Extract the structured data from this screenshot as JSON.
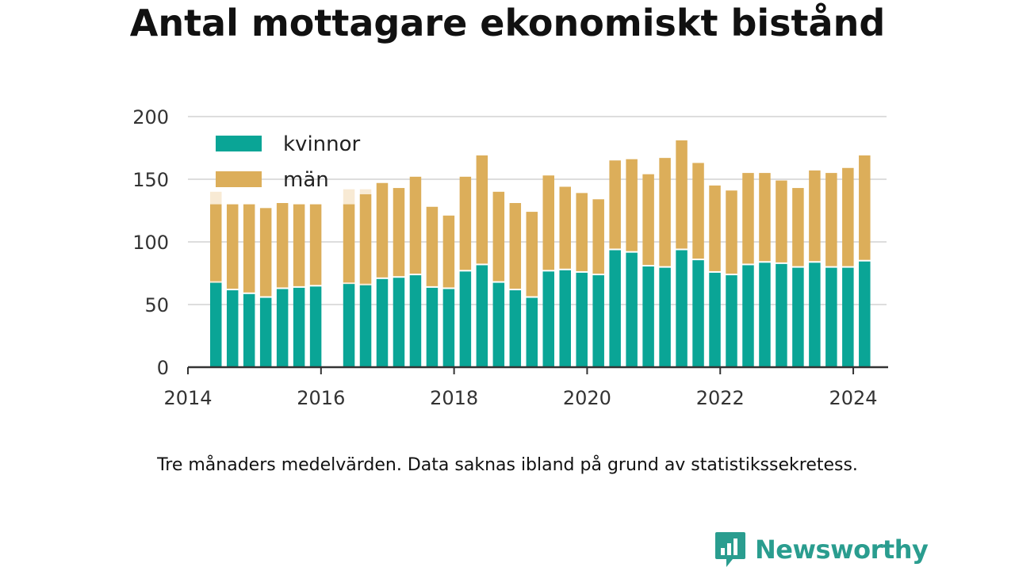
{
  "chart_data": {
    "type": "bar",
    "stacked": true,
    "title": "Antal mottagare ekonomiskt bistånd",
    "caption": "Tre månaders medelvärden. Data saknas ibland på grund av statistikssekretess.",
    "ylim": [
      0,
      200
    ],
    "y_ticks": [
      0,
      50,
      100,
      150,
      200
    ],
    "x_ticks": [
      2014,
      2016,
      2018,
      2020,
      2022,
      2024
    ],
    "xlim": [
      2014,
      2024.5
    ],
    "grid": true,
    "legend_position": "top-left",
    "colors": {
      "kvinnor": "#0aa596",
      "män": "#dcae5a",
      "suppressed": "#f8ead4"
    },
    "x": [
      2014.42,
      2014.67,
      2014.92,
      2015.17,
      2015.42,
      2015.67,
      2015.92,
      2016.42,
      2016.67,
      2016.92,
      2017.17,
      2017.42,
      2017.67,
      2017.92,
      2018.17,
      2018.42,
      2018.67,
      2018.92,
      2019.17,
      2019.42,
      2019.67,
      2019.92,
      2020.17,
      2020.42,
      2020.67,
      2020.92,
      2021.17,
      2021.42,
      2021.67,
      2021.92,
      2022.17,
      2022.42,
      2022.67,
      2022.92,
      2023.17,
      2023.42,
      2023.67,
      2023.92,
      2024.17
    ],
    "series": [
      {
        "name": "kvinnor",
        "values": [
          68,
          62,
          59,
          56,
          63,
          64,
          65,
          67,
          66,
          71,
          72,
          74,
          64,
          63,
          77,
          82,
          68,
          62,
          56,
          77,
          78,
          76,
          74,
          94,
          92,
          81,
          80,
          94,
          86,
          76,
          74,
          82,
          84,
          83,
          80,
          84,
          80,
          80,
          85
        ]
      },
      {
        "name": "män",
        "values": [
          62,
          68,
          71,
          71,
          68,
          66,
          65,
          63,
          72,
          76,
          71,
          78,
          64,
          58,
          75,
          87,
          72,
          69,
          68,
          76,
          66,
          63,
          60,
          71,
          74,
          73,
          87,
          87,
          77,
          69,
          67,
          73,
          71,
          66,
          63,
          73,
          75,
          79,
          84
        ]
      }
    ],
    "suppressed_totals": [
      {
        "x": 2014.42,
        "total": 140
      },
      {
        "x": 2016.42,
        "total": 142
      },
      {
        "x": 2016.67,
        "total": 142
      }
    ]
  },
  "brand": {
    "name": "Newsworthy",
    "icon": "bar-chart-speech-bubble-icon"
  }
}
